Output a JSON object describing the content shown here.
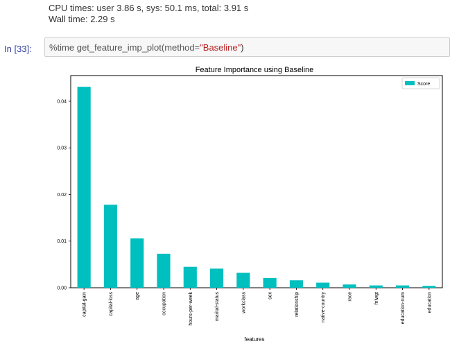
{
  "output": {
    "cpu_times": "CPU times: user 3.86 s, sys: 50.1 ms, total: 3.91 s",
    "wall_time": "Wall time: 2.29 s"
  },
  "input_cell": {
    "prompt": "In [33]:",
    "code_prefix": "%time get_feature_imp_plot(method=",
    "code_string": "\"Baseline\"",
    "code_suffix": ")"
  },
  "colors": {
    "bar": "#00bfbf",
    "prompt": "#303f9f",
    "string": "#ba2121"
  },
  "chart_data": {
    "type": "bar",
    "title": "Feature Importance using Baseline",
    "xlabel": "features",
    "ylabel": "",
    "ylim": [
      0,
      0.0455
    ],
    "yticks": [
      0.0,
      0.01,
      0.02,
      0.03,
      0.04
    ],
    "ytick_labels": [
      "0.00",
      "0.01",
      "0.02",
      "0.03",
      "0.04"
    ],
    "categories": [
      "capital-gain",
      "capital-loss",
      "age",
      "occupation",
      "hours-per-week",
      "marital-status",
      "workclass",
      "sex",
      "relationship",
      "native-country",
      "race",
      "fnlwgt",
      "education-num",
      "education"
    ],
    "series": [
      {
        "name": "Score",
        "values": [
          0.0431,
          0.0178,
          0.0106,
          0.0073,
          0.0045,
          0.0041,
          0.0032,
          0.0021,
          0.0016,
          0.0011,
          0.0007,
          0.0005,
          0.0005,
          0.0004
        ]
      }
    ],
    "legend": "top-right",
    "grid": false
  }
}
